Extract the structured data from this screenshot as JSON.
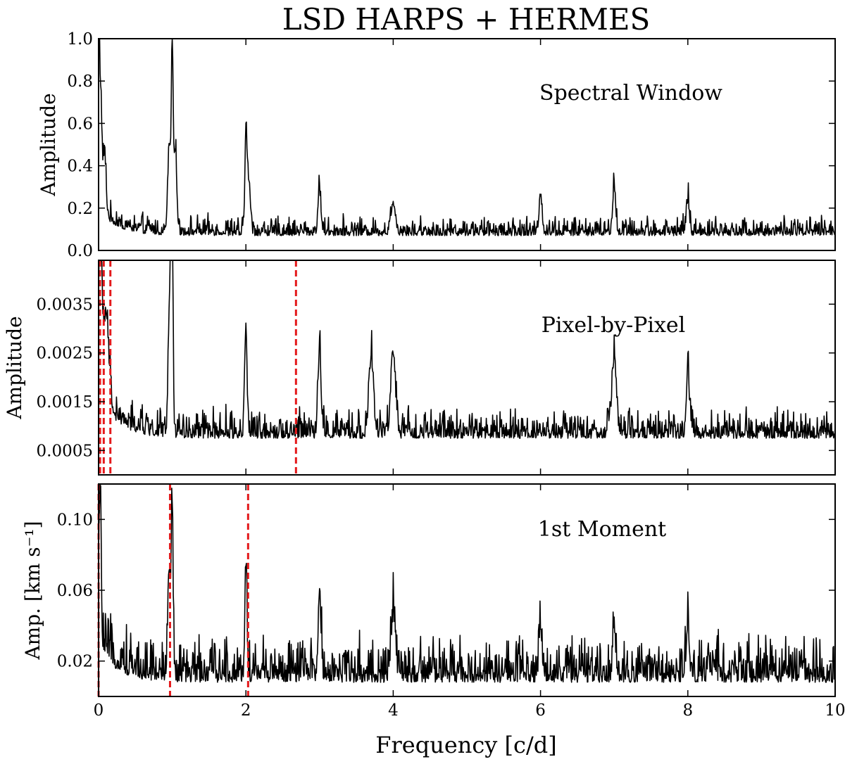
{
  "title": "LSD HARPS + HERMES",
  "xlabel": "Frequency [c/d]",
  "chart_data": [
    {
      "type": "line",
      "name": "spectral-window",
      "annotation": "Spectral Window",
      "ylabel": "Amplitude",
      "xlim": [
        0,
        10
      ],
      "ylim": [
        0,
        1.0
      ],
      "yticks": [
        0.0,
        0.2,
        0.4,
        0.6,
        0.8,
        1.0
      ],
      "ytick_labels": [
        "0.0",
        "0.2",
        "0.4",
        "0.6",
        "0.8",
        "1.0"
      ],
      "baseline": 0.07,
      "noise": 0.06,
      "lowfreq_boost": 0.12,
      "peaks": [
        [
          0.0,
          1.0,
          0.012
        ],
        [
          0.03,
          0.52,
          0.015
        ],
        [
          0.08,
          0.3,
          0.02
        ],
        [
          0.96,
          0.42,
          0.02
        ],
        [
          1.0,
          0.84,
          0.012
        ],
        [
          1.04,
          0.4,
          0.02
        ],
        [
          2.0,
          0.48,
          0.014
        ],
        [
          2.04,
          0.25,
          0.02
        ],
        [
          3.0,
          0.2,
          0.02
        ],
        [
          4.0,
          0.14,
          0.03
        ],
        [
          6.0,
          0.18,
          0.02
        ],
        [
          7.0,
          0.22,
          0.02
        ],
        [
          8.0,
          0.16,
          0.02
        ]
      ],
      "vlines": []
    },
    {
      "type": "line",
      "name": "pixel-by-pixel",
      "annotation": "Pixel-by-Pixel",
      "ylabel": "Amplitude",
      "xlim": [
        0,
        10
      ],
      "ylim": [
        0,
        0.0044
      ],
      "yticks": [
        0.0005,
        0.0015,
        0.0025,
        0.0035
      ],
      "ytick_labels": [
        "0.0005",
        "0.0015",
        "0.0025",
        "0.0035"
      ],
      "baseline": 0.00075,
      "noise": 0.0004,
      "lowfreq_boost": 0.0009,
      "peaks": [
        [
          0.02,
          0.0034,
          0.02
        ],
        [
          0.1,
          0.0018,
          0.04
        ],
        [
          0.97,
          0.0031,
          0.02
        ],
        [
          1.0,
          0.0038,
          0.012
        ],
        [
          2.0,
          0.0023,
          0.015
        ],
        [
          3.0,
          0.0018,
          0.02
        ],
        [
          3.7,
          0.0016,
          0.03
        ],
        [
          4.0,
          0.0017,
          0.03
        ],
        [
          7.0,
          0.0016,
          0.03
        ],
        [
          8.0,
          0.0014,
          0.02
        ]
      ],
      "vlines": [
        0.02,
        0.07,
        0.16,
        2.68
      ]
    },
    {
      "type": "line",
      "name": "first-moment",
      "annotation": "1st Moment",
      "ylabel": "Amp. [km s⁻¹]",
      "xlim": [
        0,
        10
      ],
      "ylim": [
        0,
        0.12
      ],
      "yticks": [
        0.02,
        0.06,
        0.1
      ],
      "ytick_labels": [
        "0.02",
        "0.06",
        "0.10"
      ],
      "baseline": 0.008,
      "noise": 0.017,
      "lowfreq_boost": 0.02,
      "peaks": [
        [
          0.02,
          0.088,
          0.015
        ],
        [
          0.96,
          0.06,
          0.02
        ],
        [
          1.0,
          0.092,
          0.012
        ],
        [
          2.0,
          0.065,
          0.014
        ],
        [
          3.0,
          0.045,
          0.02
        ],
        [
          4.0,
          0.033,
          0.03
        ],
        [
          6.0,
          0.03,
          0.02
        ],
        [
          7.0,
          0.03,
          0.02
        ],
        [
          8.0,
          0.03,
          0.02
        ]
      ],
      "vlines": [
        0.0,
        0.97,
        2.03
      ]
    }
  ],
  "xticks": [
    0,
    2,
    4,
    6,
    8,
    10
  ],
  "xtick_labels": [
    "0",
    "2",
    "4",
    "6",
    "8",
    "10"
  ]
}
